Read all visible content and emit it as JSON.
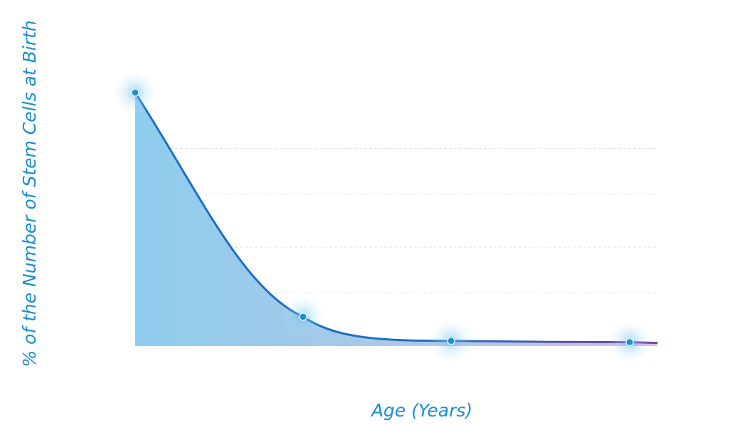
{
  "chart_data": {
    "type": "area",
    "title": "",
    "xlabel": "Age (Years)",
    "ylabel": "% of the Number of Stem Cells at Birth",
    "ylim": [
      0,
      100
    ],
    "grid": true,
    "x_tick_labels_shown": false,
    "y_tick_labels_shown": false,
    "series": [
      {
        "values": [
          100,
          11.5,
          2.0,
          1.5
        ]
      }
    ]
  },
  "colors": {
    "label": "#1a8fd1",
    "line": "#1e6fc0",
    "line_end": "#7b3f9e",
    "fill_start": "#8ecdee",
    "fill_end": "#c9a6da",
    "point": "#1a8fd1",
    "grid": "#e4e4e4"
  }
}
